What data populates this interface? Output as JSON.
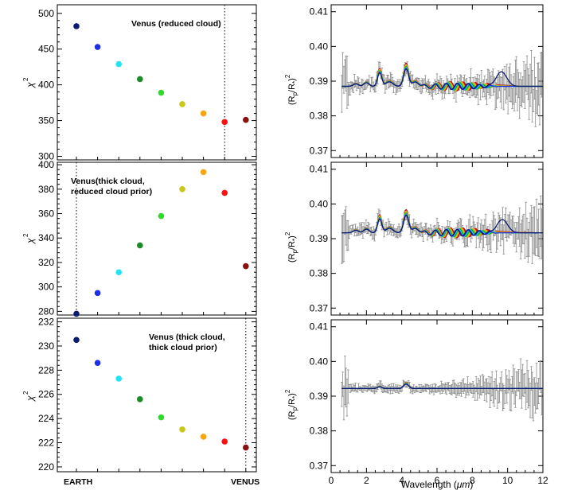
{
  "figure": {
    "chi_ylabel": "χ",
    "chi_ylabel_sup": "2",
    "spec_ylabel_main": "(R",
    "spec_ylabel_sub1": "p",
    "spec_ylabel_mid": "/R",
    "spec_ylabel_sub2": "*",
    "spec_ylabel_end": ")",
    "spec_ylabel_sup": "2",
    "bottom_left_label": "EARTH",
    "bottom_right_label": "VENUS",
    "spec_xlabel_prefix": "Wavelength (",
    "spec_xlabel_unit": "μm",
    "spec_xlabel_suffix": ")"
  },
  "colors": [
    "#0d1b6e",
    "#1f2ee8",
    "#22e3f2",
    "#1f8a2a",
    "#2ddc2b",
    "#c8c71a",
    "#f5a516",
    "#ff1010",
    "#8b1010"
  ],
  "chart_data": [
    {
      "type": "scatter",
      "panel": "chi2-1",
      "annotation": "Venus (reduced cloud)",
      "x": [
        1,
        2,
        3,
        4,
        5,
        6,
        7,
        8,
        9
      ],
      "y": [
        482,
        453,
        429,
        408,
        389,
        373,
        360,
        348,
        351
      ],
      "vline_x": 8,
      "yticks": [
        300,
        350,
        400,
        450,
        500
      ],
      "ylim": [
        295,
        512
      ]
    },
    {
      "type": "scatter",
      "panel": "chi2-2",
      "annotation_line1": "Venus(thick cloud,",
      "annotation_line2": "reduced cloud prior)",
      "x": [
        1,
        2,
        3,
        4,
        5,
        6,
        7,
        8,
        9
      ],
      "y": [
        278,
        295,
        312,
        334,
        358,
        380,
        394,
        377,
        317
      ],
      "vline_x": 1,
      "yticks": [
        280,
        300,
        320,
        340,
        360,
        380,
        400
      ],
      "ylim": [
        277,
        402
      ]
    },
    {
      "type": "scatter",
      "panel": "chi2-3",
      "annotation_line1": "Venus (thick cloud,",
      "annotation_line2": "thick cloud prior)",
      "x": [
        1,
        2,
        3,
        4,
        5,
        6,
        7,
        8,
        9
      ],
      "y": [
        230.5,
        228.6,
        227.3,
        225.6,
        224.1,
        223.1,
        222.5,
        222.1,
        221.6
      ],
      "vline_x": 9,
      "yticks": [
        220,
        222,
        224,
        226,
        228,
        230,
        232
      ],
      "ylim": [
        219.6,
        232.3
      ]
    },
    {
      "type": "line",
      "panel": "spectrum-1",
      "xticks": [
        0,
        2,
        4,
        6,
        8,
        10,
        12
      ],
      "xlim": [
        0,
        12
      ],
      "yticks": [
        0.37,
        0.38,
        0.39,
        0.4,
        0.41
      ],
      "ylim": [
        0.368,
        0.412
      ],
      "baseline": 0.3885,
      "features": [
        {
          "center": 2.75,
          "width": 0.12,
          "amplitude": 0.0045
        },
        {
          "center": 4.25,
          "width": 0.14,
          "amplitude": 0.0058
        },
        {
          "center": 2.0,
          "width": 0.15,
          "amplitude": 0.0012
        },
        {
          "center": 1.4,
          "width": 0.15,
          "amplitude": 0.0008
        },
        {
          "center": 3.3,
          "width": 0.2,
          "amplitude": 0.0015
        },
        {
          "center": 4.8,
          "width": 0.2,
          "amplitude": 0.0014
        }
      ],
      "wiggle_amplitude": 0.0011,
      "wiggle_range": [
        4.5,
        9.5
      ],
      "special_bump": {
        "center": 9.65,
        "width": 0.3,
        "amplitude": 0.0042
      },
      "noise_level": 0.0038,
      "noise_growth": 0.0028
    },
    {
      "type": "line",
      "panel": "spectrum-2",
      "xticks": [
        0,
        2,
        4,
        6,
        8,
        10,
        12
      ],
      "xlim": [
        0,
        12
      ],
      "yticks": [
        0.37,
        0.38,
        0.39,
        0.4,
        0.41
      ],
      "ylim": [
        0.368,
        0.412
      ],
      "baseline": 0.3917,
      "features": [
        {
          "center": 2.75,
          "width": 0.12,
          "amplitude": 0.0045
        },
        {
          "center": 4.25,
          "width": 0.14,
          "amplitude": 0.0058
        },
        {
          "center": 2.0,
          "width": 0.15,
          "amplitude": 0.0012
        },
        {
          "center": 1.4,
          "width": 0.15,
          "amplitude": 0.0008
        },
        {
          "center": 3.3,
          "width": 0.2,
          "amplitude": 0.0015
        },
        {
          "center": 4.8,
          "width": 0.2,
          "amplitude": 0.0014
        }
      ],
      "wiggle_amplitude": 0.0012,
      "wiggle_range": [
        4.5,
        9.5
      ],
      "special_bump": {
        "center": 9.7,
        "width": 0.3,
        "amplitude": 0.0038
      },
      "noise_level": 0.0035,
      "noise_growth": 0.0025
    },
    {
      "type": "line",
      "panel": "spectrum-3",
      "xticks": [
        0,
        2,
        4,
        6,
        8,
        10,
        12
      ],
      "xlim": [
        0,
        12
      ],
      "yticks": [
        0.37,
        0.38,
        0.39,
        0.4,
        0.41
      ],
      "ylim": [
        0.368,
        0.412
      ],
      "baseline": 0.3922,
      "features": [
        {
          "center": 2.75,
          "width": 0.12,
          "amplitude": 0.0006
        },
        {
          "center": 4.25,
          "width": 0.14,
          "amplitude": 0.0015
        }
      ],
      "wiggle_amplitude": 0.0,
      "wiggle_range": [
        4.5,
        9.5
      ],
      "special_bump": {
        "center": 9.7,
        "width": 0.3,
        "amplitude": 0.0
      },
      "noise_level": 0.0022,
      "noise_growth": 0.0028
    }
  ]
}
